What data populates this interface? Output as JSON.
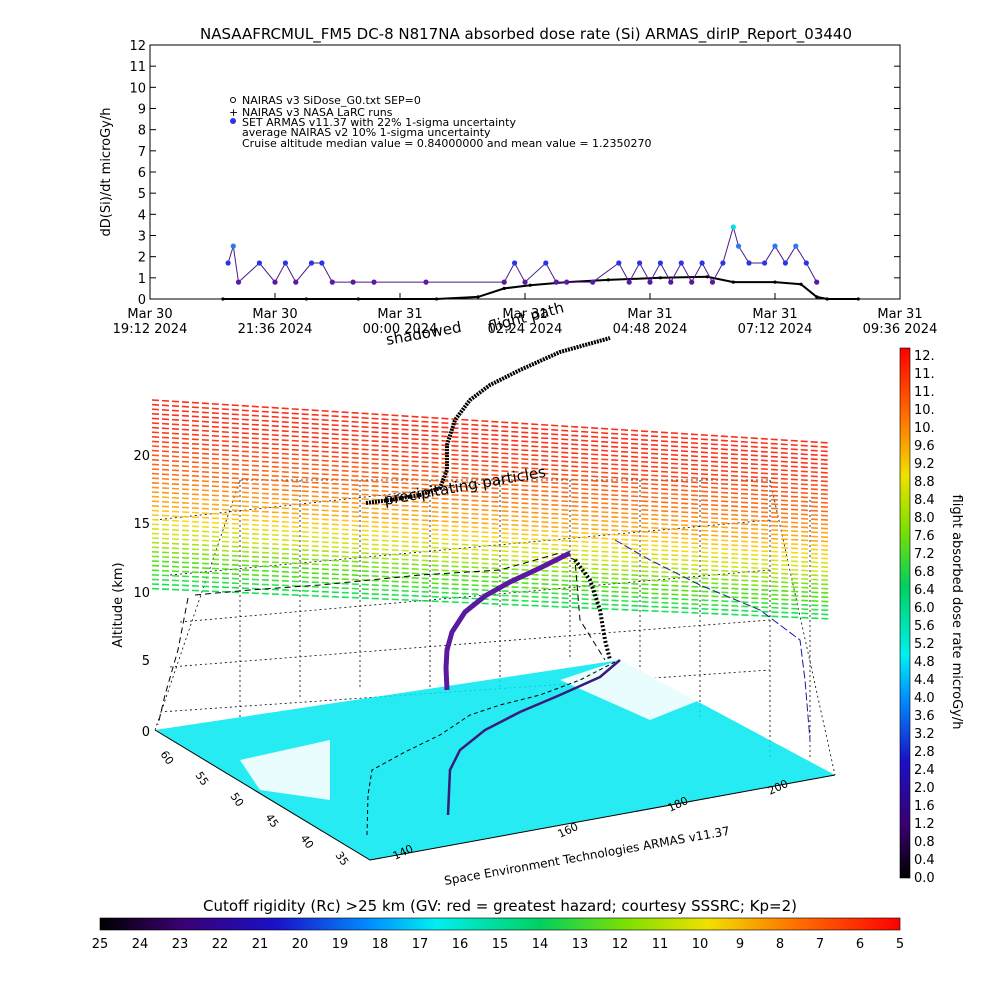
{
  "title": "NASAAFRCMUL_FM5 DC-8   N817NA absorbed dose rate (Si) ARMAS_dirIP_Report_03440",
  "chart_data": [
    {
      "type": "line",
      "ylabel": "dD(Si)/dt microGy/h",
      "ylim": [
        0,
        12
      ],
      "y_ticks": [
        "0",
        "1",
        "2",
        "3",
        "4",
        "5",
        "6",
        "7",
        "8",
        "9",
        "10",
        "11",
        "12"
      ],
      "x_ticks": [
        {
          "line1": "Mar 30",
          "line2": "19:12 2024"
        },
        {
          "line1": "Mar 30",
          "line2": "21:36 2024"
        },
        {
          "line1": "Mar 31",
          "line2": "00:00 2024"
        },
        {
          "line1": "Mar 31",
          "line2": "02:24 2024"
        },
        {
          "line1": "Mar 31",
          "line2": "04:48 2024"
        },
        {
          "line1": "Mar 31",
          "line2": "07:12 2024"
        },
        {
          "line1": "Mar 31",
          "line2": "09:36 2024"
        }
      ],
      "x_hours_span": [
        0,
        14.4
      ],
      "legend": [
        "NAIRAS v3 SiDose_G0.txt SEP=0",
        "NAIRAS v3 NASA LaRC runs",
        "SET ARMAS v11.37 with 22% 1-sigma uncertainty",
        "average NAIRAS v2 10% 1-sigma uncertainty",
        "Cruise altitude median value = 0.84000000 and mean value = 1.2350270"
      ],
      "series": [
        {
          "name": "NAIRAS v3 SiDose_G0.txt SEP=0",
          "color": "#000000",
          "points": [
            [
              1.4,
              0
            ],
            [
              3.0,
              0
            ],
            [
              4.0,
              0
            ],
            [
              5.5,
              0
            ],
            [
              6.3,
              0.1
            ],
            [
              6.8,
              0.5
            ],
            [
              7.3,
              0.65
            ],
            [
              8.0,
              0.8
            ],
            [
              8.8,
              0.9
            ],
            [
              9.8,
              1.0
            ],
            [
              10.7,
              1.05
            ],
            [
              11.2,
              0.8
            ],
            [
              12.0,
              0.8
            ],
            [
              12.5,
              0.7
            ],
            [
              12.8,
              0.1
            ],
            [
              13.0,
              0
            ],
            [
              13.6,
              0
            ]
          ]
        },
        {
          "name": "SET ARMAS v11.37 with 22% 1-sigma uncertainty",
          "color": "#2b34e8",
          "points": [
            [
              1.5,
              1.7
            ],
            [
              1.6,
              2.5
            ],
            [
              1.7,
              0.8
            ],
            [
              2.1,
              1.7
            ],
            [
              2.4,
              0.8
            ],
            [
              2.6,
              1.7
            ],
            [
              2.8,
              0.8
            ],
            [
              3.1,
              1.7
            ],
            [
              3.3,
              1.7
            ],
            [
              3.5,
              0.8
            ],
            [
              3.9,
              0.8
            ],
            [
              4.3,
              0.8
            ],
            [
              5.3,
              0.8
            ],
            [
              6.8,
              0.8
            ],
            [
              7.0,
              1.7
            ],
            [
              7.2,
              0.8
            ],
            [
              7.6,
              1.7
            ],
            [
              7.8,
              0.8
            ],
            [
              8.0,
              0.8
            ],
            [
              8.5,
              0.8
            ],
            [
              9.0,
              1.7
            ],
            [
              9.2,
              0.8
            ],
            [
              9.4,
              1.7
            ],
            [
              9.6,
              0.8
            ],
            [
              9.8,
              1.7
            ],
            [
              10.0,
              0.8
            ],
            [
              10.2,
              1.7
            ],
            [
              10.4,
              0.8
            ],
            [
              10.6,
              1.7
            ],
            [
              10.8,
              0.8
            ],
            [
              11.0,
              1.7
            ],
            [
              11.2,
              3.4
            ],
            [
              11.3,
              2.5
            ],
            [
              11.5,
              1.7
            ],
            [
              11.8,
              1.7
            ],
            [
              12.0,
              2.5
            ],
            [
              12.2,
              1.7
            ],
            [
              12.4,
              2.5
            ],
            [
              12.6,
              1.7
            ],
            [
              12.8,
              0.8
            ]
          ]
        }
      ]
    },
    {
      "type": "scatter",
      "zlabel": "Altitude (km)",
      "z_ticks": [
        "0",
        "5",
        "10",
        "15",
        "20"
      ],
      "lat_ticks": [
        "60",
        "55",
        "50",
        "45",
        "40",
        "35"
      ],
      "lon_ticks": [
        "140",
        "160",
        "180",
        "200"
      ],
      "annotations": [
        "shadowed",
        "flight path",
        "precipitating particles"
      ],
      "colorbar": {
        "label": "flight absorbed dose rate microGy/h",
        "ticks": [
          "12.",
          "11.",
          "11.",
          "10.",
          "10.",
          "9.6",
          "9.2",
          "8.8",
          "8.4",
          "8.0",
          "7.6",
          "7.2",
          "6.8",
          "6.4",
          "6.0",
          "5.6",
          "5.2",
          "4.8",
          "4.4",
          "4.0",
          "3.6",
          "3.2",
          "2.8",
          "2.4",
          "2.0",
          "1.6",
          "1.2",
          "0.8",
          "0.4",
          "0.0"
        ]
      }
    }
  ],
  "credit": "Space Environment Technologies ARMAS v11.37",
  "bottom_colorbar": {
    "title": "Cutoff rigidity (Rc) >25 km (GV: red = greatest hazard; courtesy SSSRC; Kp=2)",
    "ticks": [
      "25",
      "24",
      "23",
      "22",
      "21",
      "20",
      "19",
      "18",
      "17",
      "16",
      "15",
      "14",
      "13",
      "12",
      "11",
      "10",
      "9",
      "8",
      "7",
      "6",
      "5"
    ]
  }
}
